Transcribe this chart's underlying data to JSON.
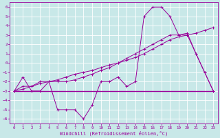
{
  "xlabel": "Windchill (Refroidissement éolien,°C)",
  "bg_color": "#c8e8e8",
  "grid_color": "#aacccc",
  "line_color": "#990099",
  "xlim": [
    -0.5,
    23.5
  ],
  "ylim": [
    -6.5,
    6.5
  ],
  "xticks": [
    0,
    1,
    2,
    3,
    4,
    5,
    6,
    7,
    8,
    9,
    10,
    11,
    12,
    13,
    14,
    15,
    16,
    17,
    18,
    19,
    20,
    21,
    22,
    23
  ],
  "yticks": [
    -6,
    -5,
    -4,
    -3,
    -2,
    -1,
    0,
    1,
    2,
    3,
    4,
    5,
    6
  ],
  "line1_x": [
    0,
    1,
    2,
    3,
    4,
    5,
    6,
    7,
    8,
    9,
    10,
    11,
    12,
    13,
    14,
    15,
    16,
    17,
    18,
    19,
    20,
    21,
    22,
    23
  ],
  "line1_y": [
    -3,
    -1.5,
    -3,
    -3,
    -2,
    -5,
    -5,
    -5,
    -6,
    -4.5,
    -2,
    -2,
    -1.5,
    -2.5,
    -2,
    5,
    6,
    6,
    5,
    3,
    3,
    1,
    -1,
    -3
  ],
  "line2_x": [
    0,
    23
  ],
  "line2_y": [
    -3,
    -3
  ],
  "line3_x": [
    0,
    1,
    2,
    3,
    4,
    5,
    6,
    7,
    8,
    9,
    10,
    11,
    12,
    13,
    14,
    15,
    16,
    17,
    18,
    19,
    20,
    21,
    22,
    23
  ],
  "line3_y": [
    -3,
    -2.5,
    -2.5,
    -2,
    -2,
    -2,
    -2,
    -1.8,
    -1.5,
    -1.2,
    -0.8,
    -0.5,
    0,
    0.5,
    1,
    1.5,
    2,
    2.5,
    3,
    3,
    3.2,
    1,
    -1,
    -3
  ],
  "line4_x": [
    0,
    1,
    2,
    3,
    4,
    5,
    6,
    7,
    8,
    9,
    10,
    11,
    12,
    13,
    14,
    15,
    16,
    17,
    18,
    19,
    20,
    21,
    22,
    23
  ],
  "line4_y": [
    -3,
    -2.8,
    -2.5,
    -2.2,
    -2,
    -1.8,
    -1.5,
    -1.2,
    -1,
    -0.8,
    -0.5,
    -0.2,
    0,
    0.3,
    0.6,
    1.0,
    1.5,
    2,
    2.5,
    2.8,
    3,
    3.2,
    3.5,
    3.8
  ]
}
